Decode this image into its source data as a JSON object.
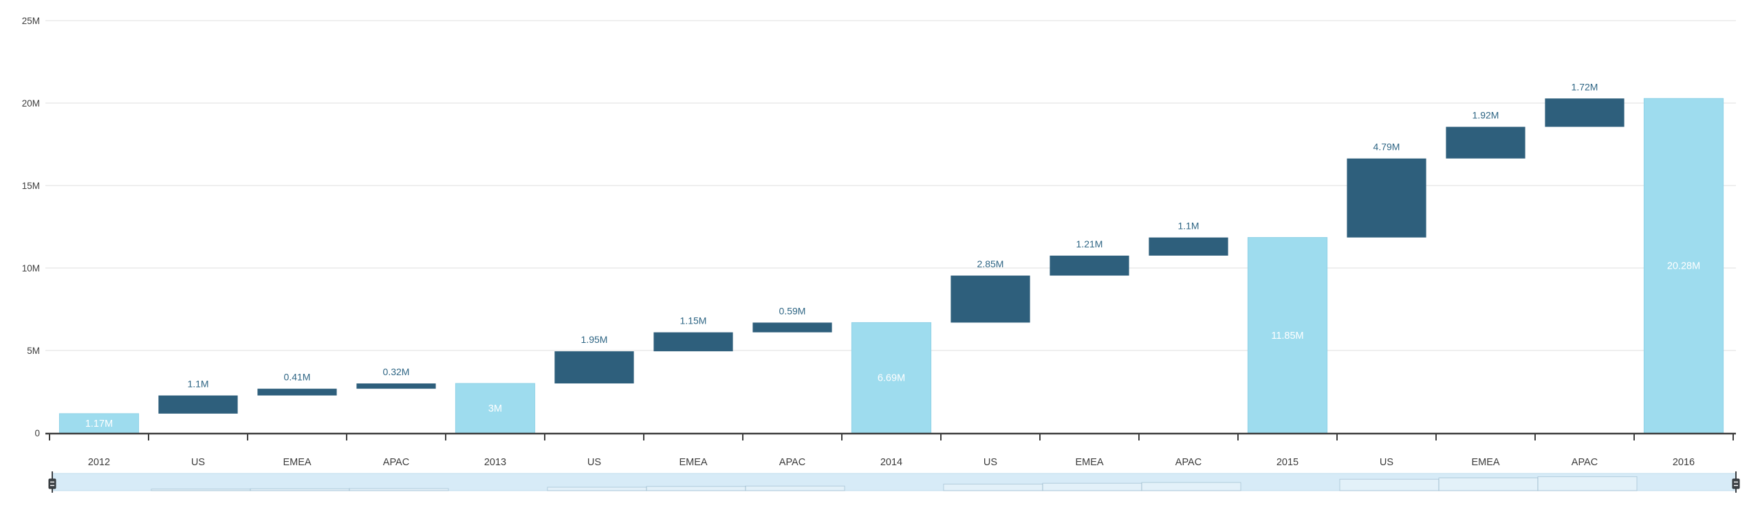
{
  "chart_data": {
    "type": "bar",
    "subtype": "waterfall",
    "title": "",
    "xlabel": "",
    "ylabel": "",
    "unit": "M",
    "ylim": [
      0,
      25000000
    ],
    "grid": true,
    "legend": false,
    "y_ticks": [
      {
        "value": 0,
        "label": "0"
      },
      {
        "value": 5,
        "label": "5M"
      },
      {
        "value": 10,
        "label": "10M"
      },
      {
        "value": 15,
        "label": "15M"
      },
      {
        "value": 20,
        "label": "20M"
      },
      {
        "value": 25,
        "label": "25M"
      }
    ],
    "categories": [
      "2012",
      "US",
      "EMEA",
      "APAC",
      "2013",
      "US",
      "EMEA",
      "APAC",
      "2014",
      "US",
      "EMEA",
      "APAC",
      "2015",
      "US",
      "EMEA",
      "APAC",
      "2016"
    ],
    "points": [
      {
        "category": "2012",
        "kind": "total",
        "value": 1.17,
        "label": "1.17M"
      },
      {
        "category": "US",
        "kind": "step",
        "value": 1.1,
        "label": "1.1M"
      },
      {
        "category": "EMEA",
        "kind": "step",
        "value": 0.41,
        "label": "0.41M"
      },
      {
        "category": "APAC",
        "kind": "step",
        "value": 0.32,
        "label": "0.32M"
      },
      {
        "category": "2013",
        "kind": "total",
        "value": 3,
        "label": "3M"
      },
      {
        "category": "US",
        "kind": "step",
        "value": 1.95,
        "label": "1.95M"
      },
      {
        "category": "EMEA",
        "kind": "step",
        "value": 1.15,
        "label": "1.15M"
      },
      {
        "category": "APAC",
        "kind": "step",
        "value": 0.59,
        "label": "0.59M"
      },
      {
        "category": "2014",
        "kind": "total",
        "value": 6.69,
        "label": "6.69M"
      },
      {
        "category": "US",
        "kind": "step",
        "value": 2.85,
        "label": "2.85M"
      },
      {
        "category": "EMEA",
        "kind": "step",
        "value": 1.21,
        "label": "1.21M"
      },
      {
        "category": "APAC",
        "kind": "step",
        "value": 1.1,
        "label": "1.1M"
      },
      {
        "category": "2015",
        "kind": "total",
        "value": 11.85,
        "label": "11.85M"
      },
      {
        "category": "US",
        "kind": "step",
        "value": 4.79,
        "label": "4.79M"
      },
      {
        "category": "EMEA",
        "kind": "step",
        "value": 1.92,
        "label": "1.92M"
      },
      {
        "category": "APAC",
        "kind": "step",
        "value": 1.72,
        "label": "1.72M"
      },
      {
        "category": "2016",
        "kind": "total",
        "value": 20.28,
        "label": "20.28M"
      }
    ],
    "colors": {
      "total_bar": "#9edcee",
      "total_bar_edge": "#8fd2e7",
      "step_bar": "#2e5f7c",
      "step_label": "#2e6584",
      "total_label": "#ffffff",
      "axis": "#3d3d3d",
      "gridline": "#efefef",
      "scrollbar_track": "#d7ebf7",
      "scrollbar_border": "#c2dcec",
      "scrollbar_preview_stroke": "#7fa5bb",
      "grip": "#3b4045"
    },
    "scrollbar": {
      "position": "bottom",
      "selection": "full-range"
    }
  }
}
